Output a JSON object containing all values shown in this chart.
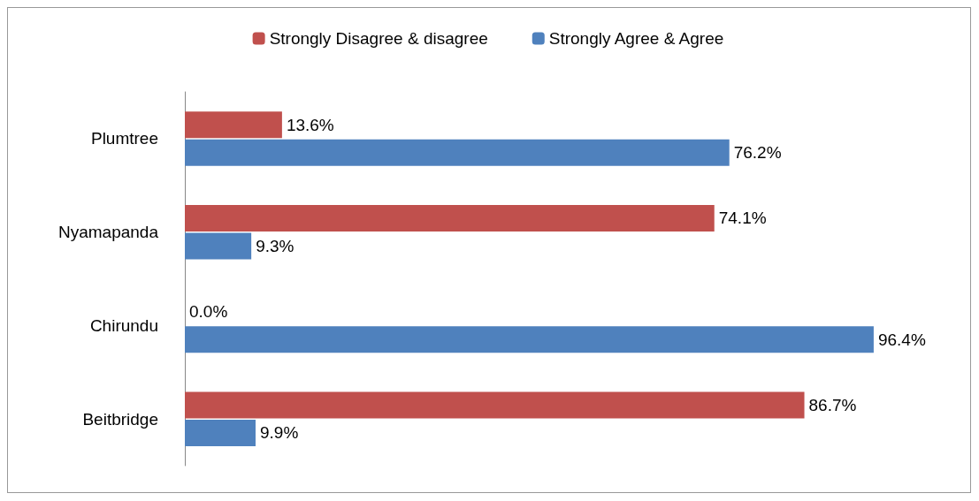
{
  "chart_data": {
    "type": "bar",
    "orientation": "horizontal",
    "categories": [
      "Plumtree",
      "Nyamapanda",
      "Chirundu",
      "Beitbridge"
    ],
    "series": [
      {
        "name": "Strongly Disagree & disagree",
        "color": "#c0504d",
        "values": [
          13.6,
          74.1,
          0.0,
          86.7
        ],
        "value_labels": [
          "13.6%",
          "74.1%",
          "0.0%",
          "86.7%"
        ]
      },
      {
        "name": "Strongly Agree & Agree",
        "color": "#4f81bd",
        "values": [
          76.2,
          9.3,
          96.4,
          9.9
        ],
        "value_labels": [
          "76.2%",
          "9.3%",
          "96.4%",
          "9.9%"
        ]
      }
    ],
    "legend": "top",
    "tick_labels": "y"
  }
}
